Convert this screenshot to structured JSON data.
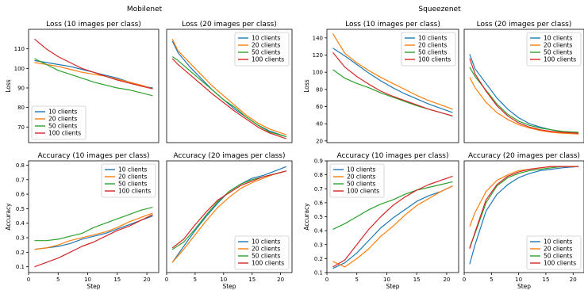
{
  "figure": {
    "groups": [
      "Mobilenet",
      "Squeezenet"
    ]
  },
  "colors": [
    "#1f77b4",
    "#ff7f0e",
    "#2ca02c",
    "#d62728"
  ],
  "chart_data": [
    {
      "type": "line",
      "group": "Mobilenet",
      "title": "Loss (10 images per class)",
      "xlabel": "",
      "ylabel": "Loss",
      "ylim": [
        62,
        120
      ],
      "xlim": [
        0,
        22
      ],
      "yticks": [
        70,
        80,
        90,
        100,
        110
      ],
      "xticks": [],
      "legend": "bottom-left",
      "x": [
        1,
        3,
        5,
        7,
        9,
        11,
        13,
        15,
        17,
        19,
        21
      ],
      "series": [
        {
          "name": "10 clients",
          "values": [
            104,
            103,
            102,
            101,
            99.5,
            98,
            96.5,
            95,
            93,
            91,
            90
          ]
        },
        {
          "name": "20 clients",
          "values": [
            103,
            102,
            101,
            99.5,
            98,
            97,
            96,
            94.5,
            93,
            91.5,
            89.5
          ]
        },
        {
          "name": "50 clients",
          "values": [
            105,
            102,
            99,
            97,
            95,
            93,
            91.5,
            90,
            89,
            87.5,
            86
          ]
        },
        {
          "name": "100 clients",
          "values": [
            115,
            110,
            106,
            103,
            100,
            98,
            96,
            94,
            92.5,
            91,
            89.5
          ]
        }
      ]
    },
    {
      "type": "line",
      "group": "Mobilenet",
      "title": "Loss (20 images per class)",
      "xlabel": "",
      "ylabel": "",
      "ylim": [
        62,
        120
      ],
      "xlim": [
        0,
        22
      ],
      "yticks": [],
      "xticks": [],
      "legend": "top-right",
      "x": [
        1,
        2,
        4,
        6,
        8,
        10,
        12,
        14,
        16,
        18,
        21
      ],
      "series": [
        {
          "name": "10 clients",
          "values": [
            114,
            108,
            101,
            95,
            89,
            84,
            79,
            75,
            71,
            68,
            65
          ]
        },
        {
          "name": "20 clients",
          "values": [
            115,
            109,
            103,
            97,
            91,
            86,
            81,
            76,
            72,
            69,
            66
          ]
        },
        {
          "name": "50 clients",
          "values": [
            106,
            104,
            99,
            94,
            89,
            84,
            80,
            75,
            71,
            67.5,
            65
          ]
        },
        {
          "name": "100 clients",
          "values": [
            105,
            102,
            97,
            92,
            87,
            82.5,
            78,
            74,
            70,
            67,
            64
          ]
        }
      ]
    },
    {
      "type": "line",
      "group": "Mobilenet",
      "title": "Accuracy (10 images per class)",
      "xlabel": "Step",
      "ylabel": "Accuracy",
      "ylim": [
        0.06,
        0.83
      ],
      "xlim": [
        0,
        22
      ],
      "yticks": [
        0.1,
        0.2,
        0.3,
        0.4,
        0.5,
        0.6,
        0.7,
        0.8
      ],
      "xticks": [
        0,
        5,
        10,
        15,
        20
      ],
      "legend": "top-right",
      "x": [
        1,
        3,
        5,
        7,
        9,
        11,
        13,
        15,
        17,
        19,
        21
      ],
      "series": [
        {
          "name": "10 clients",
          "values": [
            0.22,
            0.23,
            0.24,
            0.26,
            0.29,
            0.31,
            0.33,
            0.36,
            0.39,
            0.42,
            0.45
          ]
        },
        {
          "name": "20 clients",
          "values": [
            0.22,
            0.23,
            0.25,
            0.28,
            0.3,
            0.32,
            0.34,
            0.37,
            0.41,
            0.44,
            0.47
          ]
        },
        {
          "name": "50 clients",
          "values": [
            0.28,
            0.28,
            0.29,
            0.31,
            0.33,
            0.37,
            0.4,
            0.43,
            0.46,
            0.49,
            0.51
          ]
        },
        {
          "name": "100 clients",
          "values": [
            0.1,
            0.13,
            0.16,
            0.2,
            0.24,
            0.27,
            0.31,
            0.35,
            0.38,
            0.42,
            0.46
          ]
        }
      ]
    },
    {
      "type": "line",
      "group": "Mobilenet",
      "title": "Accuracy (20 images per class)",
      "xlabel": "Step",
      "ylabel": "",
      "ylim": [
        0.06,
        0.83
      ],
      "xlim": [
        0,
        22
      ],
      "yticks": [],
      "xticks": [
        0,
        5,
        10,
        15,
        20
      ],
      "legend": "bottom-right",
      "x": [
        1,
        3,
        5,
        7,
        9,
        11,
        13,
        15,
        17,
        19,
        21
      ],
      "series": [
        {
          "name": "10 clients",
          "values": [
            0.13,
            0.24,
            0.35,
            0.45,
            0.54,
            0.62,
            0.67,
            0.71,
            0.73,
            0.76,
            0.79
          ]
        },
        {
          "name": "20 clients",
          "values": [
            0.13,
            0.22,
            0.32,
            0.42,
            0.51,
            0.58,
            0.64,
            0.68,
            0.71,
            0.74,
            0.76
          ]
        },
        {
          "name": "50 clients",
          "values": [
            0.22,
            0.27,
            0.36,
            0.46,
            0.55,
            0.62,
            0.67,
            0.7,
            0.72,
            0.74,
            0.76
          ]
        },
        {
          "name": "100 clients",
          "values": [
            0.23,
            0.29,
            0.39,
            0.48,
            0.56,
            0.61,
            0.66,
            0.69,
            0.72,
            0.74,
            0.76
          ]
        }
      ]
    },
    {
      "type": "line",
      "group": "Squeezenet",
      "title": "Loss (10 images per class)",
      "xlabel": "",
      "ylabel": "Loss",
      "ylim": [
        18,
        150
      ],
      "xlim": [
        0,
        22
      ],
      "yticks": [
        20,
        40,
        60,
        80,
        100,
        120,
        140
      ],
      "xticks": [],
      "legend": "top-right",
      "x": [
        1,
        3,
        5,
        7,
        9,
        11,
        13,
        15,
        17,
        19,
        21
      ],
      "series": [
        {
          "name": "10 clients",
          "values": [
            128,
            119,
            109,
            99,
            90,
            82,
            75,
            69,
            63,
            58,
            53
          ]
        },
        {
          "name": "20 clients",
          "values": [
            145,
            122,
            111,
            102,
            94,
            87,
            80,
            73,
            67,
            62,
            57
          ]
        },
        {
          "name": "50 clients",
          "values": [
            103,
            93,
            87,
            82,
            76,
            71,
            66,
            61,
            57,
            53,
            49
          ]
        },
        {
          "name": "100 clients",
          "values": [
            123,
            106,
            95,
            86,
            78,
            72,
            67,
            62,
            57,
            53,
            49
          ]
        }
      ]
    },
    {
      "type": "line",
      "group": "Squeezenet",
      "title": "Loss (20 images per class)",
      "xlabel": "",
      "ylabel": "",
      "ylim": [
        18,
        150
      ],
      "xlim": [
        0,
        22
      ],
      "yticks": [],
      "xticks": [],
      "legend": "top-right",
      "x": [
        1,
        2,
        4,
        6,
        8,
        10,
        12,
        14,
        16,
        18,
        21
      ],
      "series": [
        {
          "name": "10 clients",
          "values": [
            121,
            104,
            87,
            70,
            57,
            47,
            40,
            36,
            33,
            31,
            29
          ]
        },
        {
          "name": "20 clients",
          "values": [
            94,
            82,
            65,
            53,
            45,
            39,
            35,
            32,
            30,
            29,
            28
          ]
        },
        {
          "name": "50 clients",
          "values": [
            106,
            95,
            79,
            63,
            51,
            43,
            38,
            35,
            33,
            31,
            30
          ]
        },
        {
          "name": "100 clients",
          "values": [
            116,
            98,
            78,
            61,
            49,
            41,
            36,
            33,
            31,
            30,
            29
          ]
        }
      ]
    },
    {
      "type": "line",
      "group": "Squeezenet",
      "title": "Accuracy (10 images per class)",
      "xlabel": "Step",
      "ylabel": "Accuracy",
      "ylim": [
        0.1,
        0.9
      ],
      "xlim": [
        0,
        22
      ],
      "yticks": [
        0.1,
        0.2,
        0.3,
        0.4,
        0.5,
        0.6,
        0.7,
        0.8,
        0.9
      ],
      "xticks": [
        0,
        5,
        10,
        15,
        20
      ],
      "legend": "top-left",
      "x": [
        1,
        3,
        5,
        7,
        9,
        11,
        13,
        15,
        17,
        19,
        21
      ],
      "series": [
        {
          "name": "10 clients",
          "values": [
            0.13,
            0.17,
            0.24,
            0.33,
            0.42,
            0.49,
            0.55,
            0.61,
            0.65,
            0.68,
            0.72
          ]
        },
        {
          "name": "20 clients",
          "values": [
            0.18,
            0.14,
            0.2,
            0.27,
            0.36,
            0.43,
            0.51,
            0.58,
            0.63,
            0.68,
            0.72
          ]
        },
        {
          "name": "50 clients",
          "values": [
            0.41,
            0.45,
            0.5,
            0.55,
            0.59,
            0.62,
            0.66,
            0.69,
            0.71,
            0.73,
            0.75
          ]
        },
        {
          "name": "100 clients",
          "values": [
            0.14,
            0.19,
            0.3,
            0.41,
            0.5,
            0.58,
            0.64,
            0.69,
            0.73,
            0.76,
            0.79
          ]
        }
      ]
    },
    {
      "type": "line",
      "group": "Squeezenet",
      "title": "Accuracy (20 images per class)",
      "xlabel": "Step",
      "ylabel": "",
      "ylim": [
        0.1,
        0.9
      ],
      "xlim": [
        0,
        22
      ],
      "yticks": [],
      "xticks": [
        0,
        5,
        10,
        15,
        20
      ],
      "legend": "bottom-right",
      "x": [
        1,
        2,
        4,
        6,
        8,
        10,
        12,
        14,
        16,
        18,
        21
      ],
      "series": [
        {
          "name": "10 clients",
          "values": [
            0.16,
            0.3,
            0.54,
            0.66,
            0.73,
            0.78,
            0.81,
            0.83,
            0.84,
            0.85,
            0.86
          ]
        },
        {
          "name": "20 clients",
          "values": [
            0.43,
            0.53,
            0.68,
            0.76,
            0.8,
            0.83,
            0.84,
            0.85,
            0.86,
            0.86,
            0.86
          ]
        },
        {
          "name": "50 clients",
          "values": [
            0.28,
            0.38,
            0.6,
            0.72,
            0.78,
            0.81,
            0.83,
            0.84,
            0.85,
            0.86,
            0.86
          ]
        },
        {
          "name": "100 clients",
          "values": [
            0.27,
            0.39,
            0.62,
            0.73,
            0.79,
            0.82,
            0.84,
            0.85,
            0.86,
            0.86,
            0.86
          ]
        }
      ]
    }
  ]
}
